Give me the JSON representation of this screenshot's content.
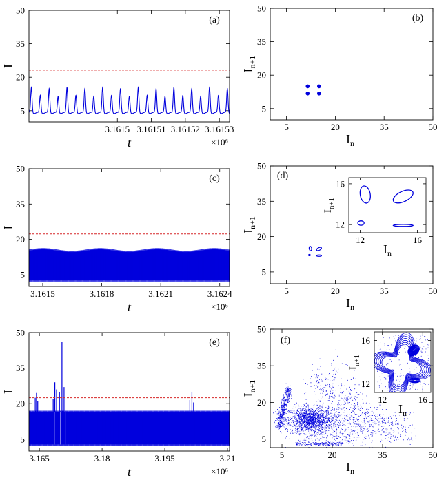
{
  "figure": {
    "threshold_color": "#d62728",
    "series_color": "#0000dd"
  },
  "chart_data": [
    {
      "id": "a",
      "type": "line",
      "panel_label": "(a)",
      "xlabel": "t",
      "ylabel": "I",
      "exponent": "×10⁶",
      "xlim": [
        3.161474,
        3.161533
      ],
      "ylim": [
        0,
        50
      ],
      "xticks": [
        3.1615,
        3.16151,
        3.16152,
        3.16153
      ],
      "xtick_labels": [
        "3.1615",
        "3.16151",
        "3.16152",
        "3.16153"
      ],
      "yticks": [
        5,
        20,
        35,
        50
      ],
      "ytick_labels": [
        "5",
        "20",
        "35",
        "50"
      ],
      "threshold": 23.2,
      "signal": {
        "peak_pattern": [
          15,
          11.5,
          14.5,
          11
        ],
        "base": 3.6,
        "period_x": 2.62e-06
      }
    },
    {
      "id": "b",
      "type": "scatter",
      "panel_label": "(b)",
      "xlabel": "I",
      "xsub": "n",
      "ylabel": "I",
      "ysub": "n+1",
      "xlim": [
        0,
        50
      ],
      "ylim": [
        0,
        50
      ],
      "xticks": [
        5,
        20,
        35,
        50
      ],
      "xtick_labels": [
        "5",
        "20",
        "35",
        "50"
      ],
      "yticks": [
        5,
        20,
        35,
        50
      ],
      "ytick_labels": [
        "5",
        "20",
        "35",
        "50"
      ],
      "points": [
        [
          11.5,
          15
        ],
        [
          15,
          15
        ],
        [
          11.5,
          11.8
        ],
        [
          15,
          11.8
        ]
      ]
    },
    {
      "id": "c",
      "type": "area",
      "panel_label": "(c)",
      "xlabel": "t",
      "ylabel": "I",
      "exponent": "×10⁶",
      "xlim": [
        3.16143,
        3.16245
      ],
      "ylim": [
        0,
        50
      ],
      "xticks": [
        3.1615,
        3.1618,
        3.1621,
        3.1624
      ],
      "xtick_labels": [
        "3.1615",
        "3.1618",
        "3.1621",
        "3.1624"
      ],
      "yticks": [
        5,
        20,
        35,
        50
      ],
      "ytick_labels": [
        "5",
        "20",
        "35",
        "50"
      ],
      "threshold": 22.3,
      "band": {
        "lower": 2.8,
        "upper_mean": 15.1,
        "upper_amp": 0.6,
        "period_x": 0.00029
      }
    },
    {
      "id": "d",
      "type": "scatter",
      "panel_label": "(d)",
      "xlabel": "I",
      "xsub": "n",
      "ylabel": "I",
      "ysub": "n+1",
      "xlim": [
        0,
        50
      ],
      "ylim": [
        0,
        50
      ],
      "xticks": [
        5,
        20,
        35,
        50
      ],
      "xtick_labels": [
        "5",
        "20",
        "35",
        "50"
      ],
      "yticks": [
        5,
        20,
        35,
        50
      ],
      "ytick_labels": [
        "5",
        "20",
        "35",
        "50"
      ],
      "inset": {
        "xlim": [
          11.2,
          16.6
        ],
        "ylim": [
          11.2,
          16.6
        ],
        "xticks": [
          12,
          16
        ],
        "xtick_labels": [
          "12",
          "16"
        ],
        "yticks": [
          12,
          16
        ],
        "ytick_labels": [
          "12",
          "16"
        ],
        "xlabel": "I",
        "xsub": "n",
        "ylabel": "I",
        "ysub": "n+1",
        "loops": [
          {
            "cx": 12.35,
            "cy": 14.95,
            "rx": 0.35,
            "ry": 0.85,
            "rot": -10
          },
          {
            "cx": 15.0,
            "cy": 14.75,
            "rx": 0.75,
            "ry": 0.5,
            "rot": -25
          },
          {
            "cx": 12.05,
            "cy": 12.15,
            "rx": 0.22,
            "ry": 0.22,
            "rot": 0
          },
          {
            "cx": 15.0,
            "cy": 11.92,
            "rx": 0.7,
            "ry": 0.1,
            "rot": 0
          }
        ]
      }
    },
    {
      "id": "e",
      "type": "area",
      "panel_label": "(e)",
      "xlabel": "t",
      "ylabel": "I",
      "exponent": "×10⁶",
      "xlim": [
        3.1625,
        3.2105
      ],
      "ylim": [
        0,
        50
      ],
      "xticks": [
        3.165,
        3.18,
        3.195,
        3.21
      ],
      "xtick_labels": [
        "3.165",
        "3.18",
        "3.195",
        "3.21"
      ],
      "yticks": [
        5,
        20,
        35,
        50
      ],
      "ytick_labels": [
        "5",
        "20",
        "35",
        "50"
      ],
      "threshold": 22.5,
      "band": {
        "lower": 2.8,
        "upper": 16.5
      },
      "bursts": [
        [
          3.164,
          22.5
        ],
        [
          3.1643,
          24.5
        ],
        [
          3.1646,
          21.0
        ],
        [
          3.1683,
          22.0
        ],
        [
          3.1687,
          29.0
        ],
        [
          3.1691,
          26.0
        ],
        [
          3.1698,
          25.0
        ],
        [
          3.1704,
          46.0
        ],
        [
          3.1709,
          27.0
        ],
        [
          3.201,
          21.5
        ],
        [
          3.2015,
          24.8
        ],
        [
          3.2019,
          20.5
        ]
      ]
    },
    {
      "id": "f",
      "type": "scatter",
      "panel_label": "(f)",
      "xlabel": "I",
      "xsub": "n",
      "ylabel": "I",
      "ysub": "n+1",
      "xlim": [
        1.5,
        50
      ],
      "ylim": [
        1.5,
        50
      ],
      "xticks": [
        5,
        20,
        35,
        50
      ],
      "xtick_labels": [
        "5",
        "20",
        "35",
        "50"
      ],
      "yticks": [
        5,
        20,
        35,
        50
      ],
      "ytick_labels": [
        "5",
        "20",
        "35",
        "50"
      ],
      "inset": {
        "xlim": [
          11.2,
          16.8
        ],
        "ylim": [
          11.2,
          16.8
        ],
        "xticks": [
          12,
          16
        ],
        "xtick_labels": [
          "12",
          "16"
        ],
        "yticks": [
          12,
          16
        ],
        "ytick_labels": [
          "12",
          "16"
        ],
        "xlabel": "I",
        "xsub": "n",
        "ylabel": "I",
        "ysub": "n+1"
      }
    }
  ]
}
